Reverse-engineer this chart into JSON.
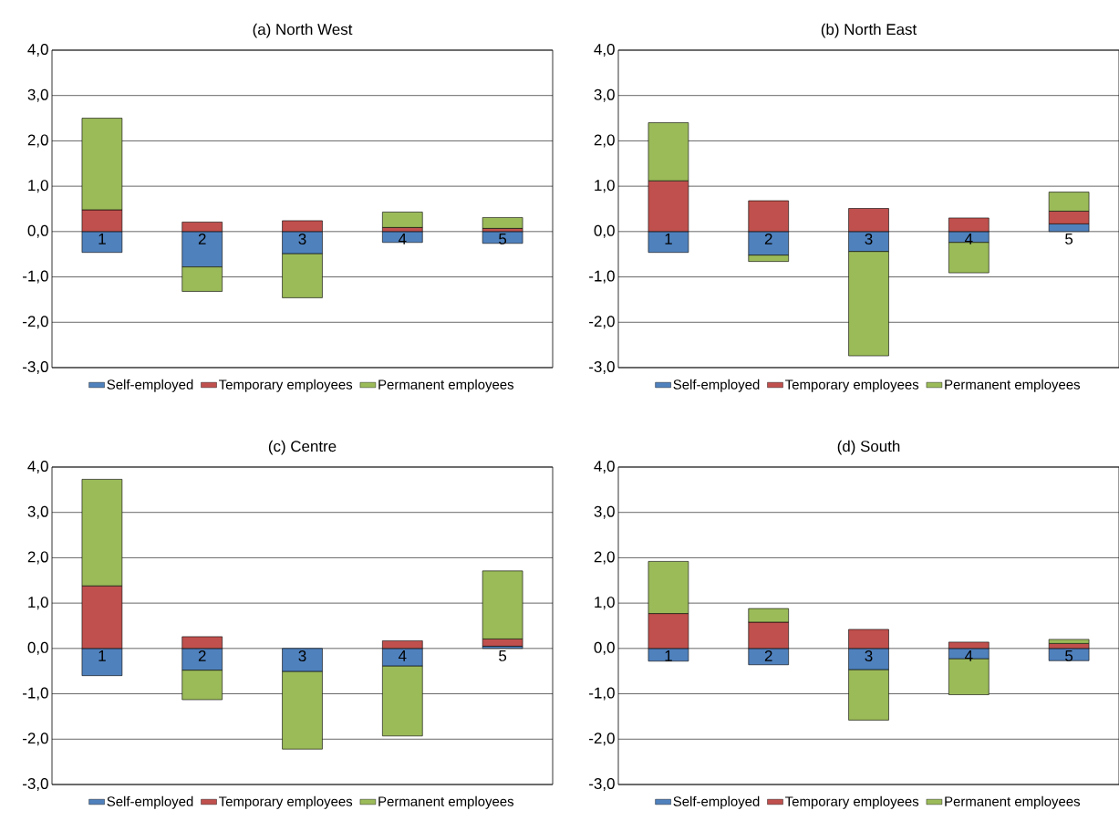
{
  "chart_data": [
    {
      "type": "bar",
      "stacked": true,
      "title": "(a) North West",
      "categories": [
        "1",
        "2",
        "3",
        "4",
        "5"
      ],
      "series": [
        {
          "name": "Self-employed",
          "color": "#4f81bd",
          "values": [
            -0.46,
            -0.78,
            -0.49,
            -0.24,
            -0.26
          ]
        },
        {
          "name": "Temporary employees",
          "color": "#c0504d",
          "values": [
            0.48,
            0.21,
            0.24,
            0.09,
            0.07
          ]
        },
        {
          "name": "Permanent employees",
          "color": "#9bbb59",
          "values": [
            2.02,
            -0.54,
            -0.97,
            0.34,
            0.24
          ]
        }
      ],
      "ylim": [
        -3,
        4
      ],
      "yticks": [
        {
          "value": -3,
          "label": "-3,0"
        },
        {
          "value": -2,
          "label": "-2,0"
        },
        {
          "value": -1,
          "label": "-1,0"
        },
        {
          "value": 0,
          "label": "0,0"
        },
        {
          "value": 1,
          "label": "1,0"
        },
        {
          "value": 2,
          "label": "2,0"
        },
        {
          "value": 3,
          "label": "3,0"
        },
        {
          "value": 4,
          "label": "4,0"
        }
      ],
      "grid": "y",
      "legend": "bottom"
    },
    {
      "type": "bar",
      "stacked": true,
      "title": "(b) North East",
      "categories": [
        "1",
        "2",
        "3",
        "4",
        "5"
      ],
      "series": [
        {
          "name": "Self-employed",
          "color": "#4f81bd",
          "values": [
            -0.46,
            -0.52,
            -0.44,
            -0.24,
            0.17
          ]
        },
        {
          "name": "Temporary employees",
          "color": "#c0504d",
          "values": [
            1.12,
            0.68,
            0.51,
            0.3,
            0.28
          ]
        },
        {
          "name": "Permanent employees",
          "color": "#9bbb59",
          "values": [
            1.28,
            -0.14,
            -2.3,
            -0.67,
            0.42
          ]
        }
      ],
      "ylim": [
        -3,
        4
      ],
      "yticks": [
        {
          "value": -3,
          "label": "-3,0"
        },
        {
          "value": -2,
          "label": "-2,0"
        },
        {
          "value": -1,
          "label": "-1,0"
        },
        {
          "value": 0,
          "label": "0,0"
        },
        {
          "value": 1,
          "label": "1,0"
        },
        {
          "value": 2,
          "label": "2,0"
        },
        {
          "value": 3,
          "label": "3,0"
        },
        {
          "value": 4,
          "label": "4,0"
        }
      ],
      "grid": "y",
      "legend": "bottom"
    },
    {
      "type": "bar",
      "stacked": true,
      "title": "(c) Centre",
      "categories": [
        "1",
        "2",
        "3",
        "4",
        "5"
      ],
      "series": [
        {
          "name": "Self-employed",
          "color": "#4f81bd",
          "values": [
            -0.6,
            -0.48,
            -0.51,
            -0.39,
            0.05
          ]
        },
        {
          "name": "Temporary employees",
          "color": "#c0504d",
          "values": [
            1.38,
            0.26,
            null,
            0.17,
            0.16
          ]
        },
        {
          "name": "Permanent employees",
          "color": "#9bbb59",
          "values": [
            2.35,
            -0.65,
            -1.71,
            -1.54,
            1.5
          ]
        }
      ],
      "ylim": [
        -3,
        4
      ],
      "yticks": [
        {
          "value": -3,
          "label": "-3,0"
        },
        {
          "value": -2,
          "label": "-2,0"
        },
        {
          "value": -1,
          "label": "-1,0"
        },
        {
          "value": 0,
          "label": "0,0"
        },
        {
          "value": 1,
          "label": "1,0"
        },
        {
          "value": 2,
          "label": "2,0"
        },
        {
          "value": 3,
          "label": "3,0"
        },
        {
          "value": 4,
          "label": "4,0"
        }
      ],
      "grid": "y",
      "legend": "bottom"
    },
    {
      "type": "bar",
      "stacked": true,
      "title": "(d) South",
      "categories": [
        "1",
        "2",
        "3",
        "4",
        "5"
      ],
      "series": [
        {
          "name": "Self-employed",
          "color": "#4f81bd",
          "values": [
            -0.28,
            -0.36,
            -0.47,
            -0.23,
            -0.27
          ]
        },
        {
          "name": "Temporary employees",
          "color": "#c0504d",
          "values": [
            0.77,
            0.58,
            0.42,
            0.14,
            0.11
          ]
        },
        {
          "name": "Permanent employees",
          "color": "#9bbb59",
          "values": [
            1.15,
            0.3,
            -1.11,
            -0.79,
            0.09
          ]
        }
      ],
      "ylim": [
        -3,
        4
      ],
      "yticks": [
        {
          "value": -3,
          "label": "-3,0"
        },
        {
          "value": -2,
          "label": "-2,0"
        },
        {
          "value": -1,
          "label": "-1,0"
        },
        {
          "value": 0,
          "label": "0,0"
        },
        {
          "value": 1,
          "label": "1,0"
        },
        {
          "value": 2,
          "label": "2,0"
        },
        {
          "value": 3,
          "label": "3,0"
        },
        {
          "value": 4,
          "label": "4,0"
        }
      ],
      "grid": "y",
      "legend": "bottom"
    }
  ]
}
